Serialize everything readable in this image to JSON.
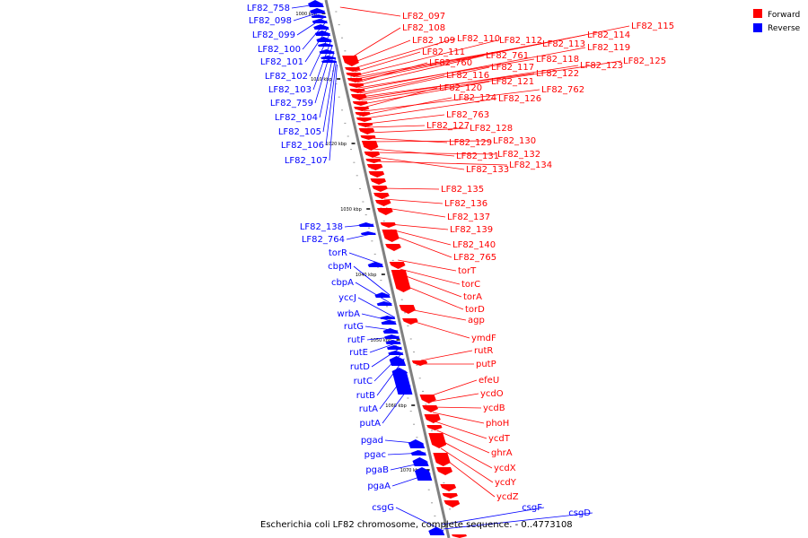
{
  "caption": "Escherichia coli LF82 chromosome, complete sequence. - 0..4773108",
  "legend": [
    {
      "label": "Forward",
      "color": "#ff0000"
    },
    {
      "label": "Reverse",
      "color": "#0000ff"
    }
  ],
  "colors": {
    "forward": "#ff0000",
    "reverse": "#0000ff",
    "backbone": "#808080"
  },
  "ticks": [
    "1000 kbp",
    "1010 kbp",
    "1020 kbp",
    "1030 kbp",
    "1040 kbp",
    "1050 kbp",
    "1060 kbp",
    "1070 kbp"
  ],
  "reverse_genes": [
    "LF82_758",
    "LF82_098",
    "LF82_099",
    "LF82_100",
    "LF82_101",
    "LF82_102",
    "LF82_103",
    "LF82_759",
    "LF82_104",
    "LF82_105",
    "LF82_106",
    "LF82_107",
    "LF82_138",
    "LF82_764",
    "torR",
    "cbpM",
    "cbpA",
    "yccJ",
    "wrbA",
    "rutG",
    "rutF",
    "rutE",
    "rutD",
    "rutC",
    "rutB",
    "rutA",
    "putA",
    "pgad",
    "pgac",
    "pgaB",
    "pgaA",
    "csgG",
    "csgF",
    "csgD"
  ],
  "forward_genes": [
    "LF82_097",
    "LF82_108",
    "LF82_109",
    "LF82_110",
    "LF82_111",
    "LF82_112",
    "LF82_113",
    "LF82_114",
    "LF82_115",
    "LF82_760",
    "LF82_761",
    "LF82_118",
    "LF82_119",
    "LF82_116",
    "LF82_117",
    "LF82_122",
    "LF82_123",
    "LF82_125",
    "LF82_121",
    "LF82_120",
    "LF82_762",
    "LF82_124",
    "LF82_126",
    "LF82_763",
    "LF82_127",
    "LF82_128",
    "LF82_129",
    "LF82_130",
    "LF82_131",
    "LF82_132",
    "LF82_133",
    "LF82_134",
    "LF82_135",
    "LF82_136",
    "LF82_137",
    "LF82_139",
    "LF82_140",
    "LF82_765",
    "torT",
    "torC",
    "torA",
    "torD",
    "agp",
    "ymdF",
    "rutR",
    "putP",
    "efeU",
    "ycdO",
    "ycdB",
    "phoH",
    "ycdT",
    "ghrA",
    "ycdX",
    "ycdY",
    "ycdZ"
  ]
}
